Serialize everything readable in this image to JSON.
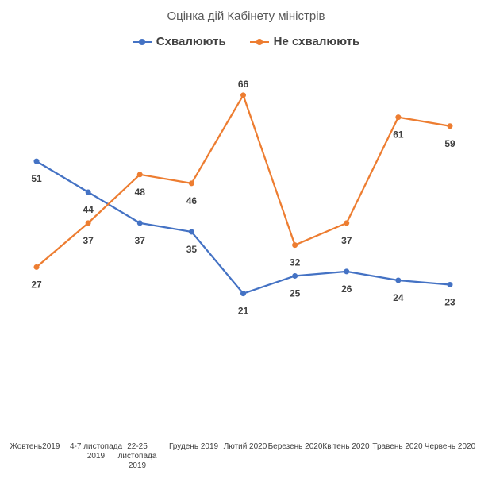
{
  "chart_data": {
    "type": "line",
    "title": "Оцінка дій Кабінету міністрів",
    "categories": [
      "Жовтень2019",
      "4-7 листопада 2019",
      "22-25 листопада 2019",
      "Грудень 2019",
      "Лютий 2020",
      "Березень 2020",
      "Квітень 2020",
      "Травень 2020",
      "Червень 2020"
    ],
    "series": [
      {
        "name": "Схвалюють",
        "color": "#4472c4",
        "values": [
          51,
          44,
          37,
          35,
          21,
          25,
          26,
          24,
          23
        ],
        "labels": [
          "51",
          "44",
          "37",
          "35",
          "21",
          "25",
          "26",
          "24",
          "23"
        ]
      },
      {
        "name": "Не схвалюють",
        "color": "#ed7d31",
        "values": [
          27,
          37,
          48,
          46,
          66,
          32,
          37,
          61,
          59
        ],
        "labels": [
          "27",
          "37",
          "48",
          "46",
          "66",
          "32",
          "37",
          "61",
          "59"
        ]
      }
    ],
    "legend_position": "top",
    "grid": false
  }
}
